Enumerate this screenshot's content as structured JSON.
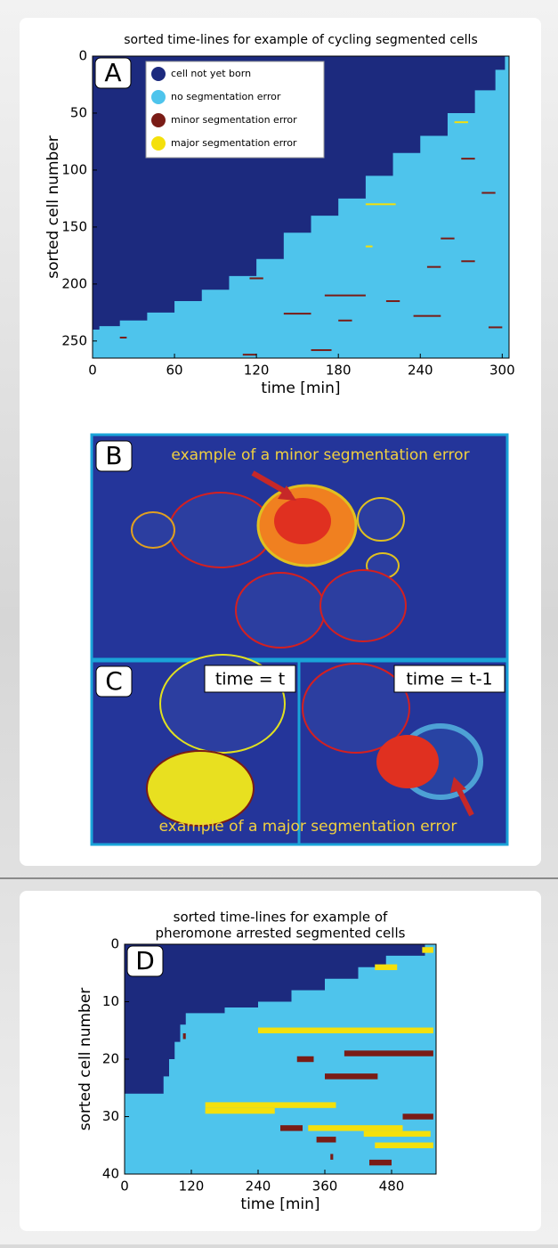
{
  "chart_data": [
    {
      "type": "timeline",
      "panel": "A",
      "title": "sorted time-lines for example of cycling segmented cells",
      "xlabel": "time [min]",
      "ylabel": "sorted cell number",
      "xlim": [
        0,
        305
      ],
      "ylim": [
        0,
        265
      ],
      "y_inverted": true,
      "xticks": [
        0,
        60,
        120,
        180,
        240,
        300
      ],
      "yticks": [
        0,
        50,
        100,
        150,
        200,
        250
      ],
      "legend": true,
      "series": [
        {
          "name": "cell not yet born",
          "color": "#1c2a7e",
          "boundary": {
            "x": [
              0,
              5,
              20,
              40,
              60,
              80,
              100,
              120,
              140,
              160,
              180,
              200,
              220,
              240,
              260,
              280,
              295,
              302
            ],
            "y": [
              240,
              237,
              232,
              225,
              215,
              205,
              193,
              178,
              155,
              140,
              125,
              105,
              85,
              70,
              50,
              30,
              12,
              0
            ]
          }
        },
        {
          "name": "no segmentation error",
          "color": "#4ec4ec"
        },
        {
          "name": "minor segmentation error",
          "color": "#7a1c16",
          "rows": [
            210,
            226,
            228,
            238,
            258,
            262,
            160,
            185,
            247,
            180,
            195,
            232,
            120,
            90,
            215
          ],
          "starts": [
            170,
            140,
            235,
            290,
            160,
            110,
            255,
            245,
            20,
            270,
            115,
            180,
            285,
            270,
            215
          ],
          "ends": [
            200,
            160,
            255,
            300,
            175,
            120,
            265,
            255,
            25,
            280,
            125,
            190,
            295,
            280,
            225
          ]
        },
        {
          "name": "major segmentation error",
          "color": "#f4e00c",
          "rows": [
            130,
            167,
            58
          ],
          "starts": [
            200,
            200,
            265
          ],
          "ends": [
            222,
            205,
            275
          ]
        }
      ]
    },
    {
      "type": "timeline",
      "panel": "D",
      "title": [
        "sorted time-lines for example of",
        "pheromone arrested segmented cells"
      ],
      "xlabel": "time [min]",
      "ylabel": "sorted cell number",
      "xlim": [
        0,
        560
      ],
      "ylim": [
        0,
        40
      ],
      "y_inverted": true,
      "xticks": [
        0,
        120,
        240,
        360,
        480
      ],
      "yticks": [
        0,
        10,
        20,
        30,
        40
      ],
      "legend": false,
      "series": [
        {
          "color": "#1c2a7e",
          "boundary": {
            "x": [
              0,
              60,
              70,
              80,
              90,
              100,
              110,
              180,
              240,
              300,
              360,
              420,
              470,
              540
            ],
            "y": [
              26,
              26,
              23,
              20,
              17,
              14,
              12,
              11,
              10,
              8,
              6,
              4,
              2,
              0
            ]
          }
        },
        {
          "color": "#4ec4ec"
        },
        {
          "color": "#7a1c16",
          "rows": [
            19,
            20,
            23,
            32,
            34,
            38,
            30,
            16,
            37
          ],
          "starts": [
            395,
            310,
            360,
            280,
            345,
            440,
            500,
            105,
            370
          ],
          "ends": [
            555,
            340,
            455,
            320,
            380,
            480,
            555,
            110,
            375
          ]
        },
        {
          "color": "#f4e00c",
          "rows": [
            15,
            28,
            29,
            32,
            33,
            4,
            1,
            35
          ],
          "starts": [
            240,
            145,
            145,
            330,
            430,
            450,
            535,
            450
          ],
          "ends": [
            555,
            380,
            270,
            500,
            550,
            490,
            555,
            555
          ]
        }
      ]
    }
  ],
  "images": {
    "b": {
      "label": "B",
      "caption": "example of a minor segmentation error"
    },
    "c": {
      "label": "C",
      "left": "time = t",
      "right": "time = t-1",
      "caption": "example of a major segmentation error"
    }
  }
}
